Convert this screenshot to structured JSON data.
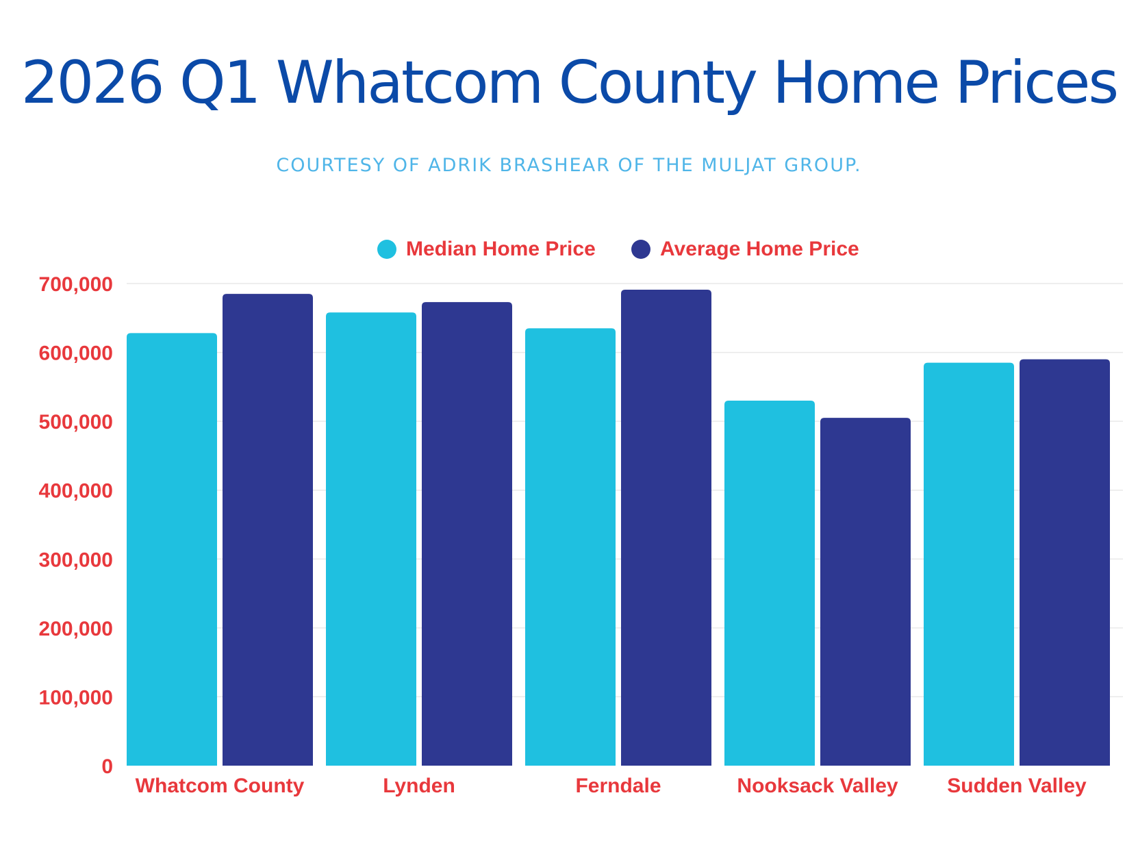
{
  "chart_data": {
    "type": "bar",
    "title": "2026 Q1 Whatcom County Home Prices",
    "subtitle": "COURTESY OF ADRIK BRASHEAR OF THE MULJAT GROUP.",
    "categories": [
      "Whatcom County",
      "Lynden",
      "Ferndale",
      "Nooksack Valley",
      "Sudden Valley"
    ],
    "series": [
      {
        "name": "Median Home Price",
        "color": "#1fc0e0",
        "values": [
          628000,
          658000,
          635000,
          530000,
          585000
        ]
      },
      {
        "name": "Average Home Price",
        "color": "#2e3891",
        "values": [
          685000,
          673000,
          691000,
          505000,
          590000
        ]
      }
    ],
    "ylim": [
      0,
      700000
    ],
    "yticks": [
      0,
      100000,
      200000,
      300000,
      400000,
      500000,
      600000,
      700000
    ],
    "ytick_labels": [
      "0",
      "100,000",
      "200,000",
      "300,000",
      "400,000",
      "500,000",
      "600,000",
      "700,000"
    ],
    "grid": true,
    "legend_position": "top-center",
    "xlabel": "",
    "ylabel": ""
  }
}
